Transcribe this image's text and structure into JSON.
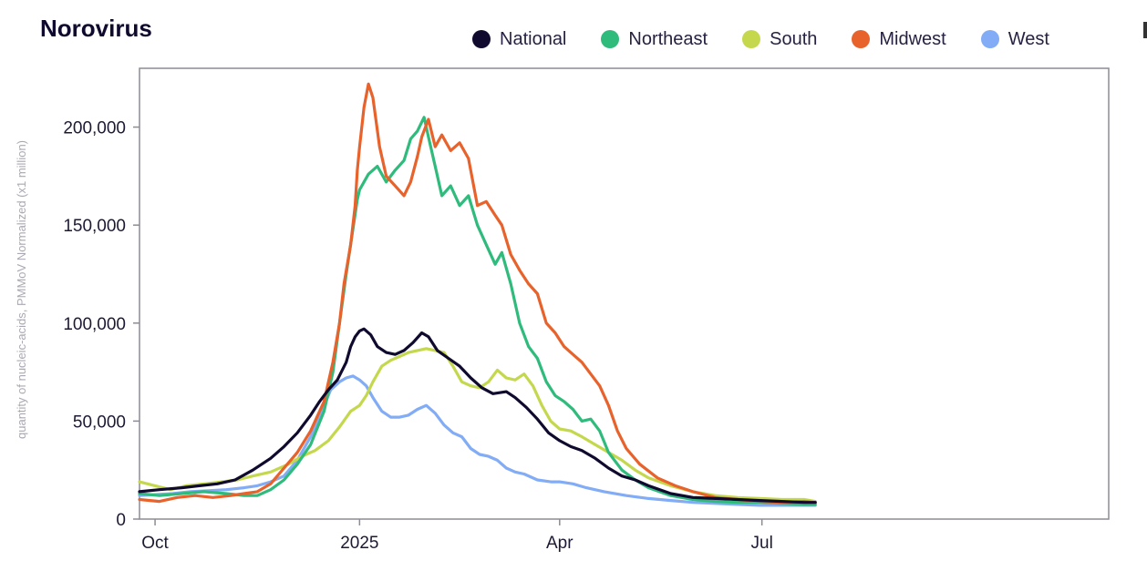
{
  "chart_data": {
    "type": "line",
    "title": "Norovirus",
    "xlabel": "",
    "ylabel": "quantity of nucleic-acids, PMMoV Normalized (x1 million)",
    "ylim": [
      0,
      230000
    ],
    "xlim_days": [
      -99,
      337
    ],
    "x_unit": "days since 2025-01-01",
    "y_ticks": [
      {
        "value": 0,
        "label": "0"
      },
      {
        "value": 50000,
        "label": "50,000"
      },
      {
        "value": 100000,
        "label": "100,000"
      },
      {
        "value": 150000,
        "label": "150,000"
      },
      {
        "value": 200000,
        "label": "200,000"
      }
    ],
    "x_ticks": [
      {
        "day": -92,
        "label": "Oct"
      },
      {
        "day": 0,
        "label": "2025"
      },
      {
        "day": 90,
        "label": "Apr"
      },
      {
        "day": 181,
        "label": "Jul"
      }
    ],
    "legend_position": "top",
    "series": [
      {
        "name": "National",
        "color": "#0f0a2e",
        "points": [
          [
            -99,
            14000
          ],
          [
            -90,
            15000
          ],
          [
            -80,
            16000
          ],
          [
            -72,
            17000
          ],
          [
            -64,
            18000
          ],
          [
            -56,
            20000
          ],
          [
            -48,
            25000
          ],
          [
            -40,
            31000
          ],
          [
            -34,
            37000
          ],
          [
            -28,
            44000
          ],
          [
            -22,
            53000
          ],
          [
            -18,
            60000
          ],
          [
            -14,
            66000
          ],
          [
            -10,
            71000
          ],
          [
            -6,
            80000
          ],
          [
            -4,
            88000
          ],
          [
            -2,
            93000
          ],
          [
            0,
            96000
          ],
          [
            2,
            97000
          ],
          [
            5,
            94000
          ],
          [
            8,
            88000
          ],
          [
            12,
            85000
          ],
          [
            16,
            84000
          ],
          [
            20,
            86000
          ],
          [
            24,
            90000
          ],
          [
            28,
            95000
          ],
          [
            31,
            93000
          ],
          [
            35,
            86000
          ],
          [
            40,
            82000
          ],
          [
            45,
            78000
          ],
          [
            50,
            72000
          ],
          [
            55,
            67000
          ],
          [
            60,
            64000
          ],
          [
            66,
            65000
          ],
          [
            70,
            62000
          ],
          [
            75,
            57000
          ],
          [
            80,
            51000
          ],
          [
            85,
            44000
          ],
          [
            90,
            40000
          ],
          [
            95,
            37000
          ],
          [
            100,
            35000
          ],
          [
            106,
            31000
          ],
          [
            112,
            26000
          ],
          [
            118,
            22000
          ],
          [
            124,
            20000
          ],
          [
            130,
            17000
          ],
          [
            140,
            13000
          ],
          [
            150,
            11000
          ],
          [
            160,
            10500
          ],
          [
            170,
            10000
          ],
          [
            180,
            9500
          ],
          [
            190,
            9000
          ],
          [
            200,
            8500
          ],
          [
            205,
            8500
          ]
        ]
      },
      {
        "name": "Northeast",
        "color": "#2fbb7c",
        "points": [
          [
            -99,
            13000
          ],
          [
            -90,
            12000
          ],
          [
            -80,
            13000
          ],
          [
            -70,
            14000
          ],
          [
            -60,
            13000
          ],
          [
            -52,
            12000
          ],
          [
            -46,
            12000
          ],
          [
            -40,
            15000
          ],
          [
            -34,
            20000
          ],
          [
            -28,
            28000
          ],
          [
            -22,
            38000
          ],
          [
            -16,
            55000
          ],
          [
            -12,
            75000
          ],
          [
            -9,
            100000
          ],
          [
            -6,
            125000
          ],
          [
            -3,
            148000
          ],
          [
            -1,
            163000
          ],
          [
            0,
            168000
          ],
          [
            4,
            176000
          ],
          [
            8,
            180000
          ],
          [
            12,
            172000
          ],
          [
            16,
            178000
          ],
          [
            20,
            183000
          ],
          [
            23,
            194000
          ],
          [
            26,
            198000
          ],
          [
            29,
            205000
          ],
          [
            31,
            195000
          ],
          [
            34,
            180000
          ],
          [
            37,
            165000
          ],
          [
            41,
            170000
          ],
          [
            45,
            160000
          ],
          [
            49,
            165000
          ],
          [
            53,
            150000
          ],
          [
            57,
            140000
          ],
          [
            61,
            130000
          ],
          [
            64,
            136000
          ],
          [
            68,
            120000
          ],
          [
            72,
            100000
          ],
          [
            76,
            88000
          ],
          [
            80,
            82000
          ],
          [
            84,
            70000
          ],
          [
            88,
            63000
          ],
          [
            92,
            60000
          ],
          [
            96,
            56000
          ],
          [
            100,
            50000
          ],
          [
            104,
            51000
          ],
          [
            108,
            45000
          ],
          [
            112,
            34000
          ],
          [
            118,
            25000
          ],
          [
            124,
            20000
          ],
          [
            130,
            16000
          ],
          [
            140,
            12000
          ],
          [
            150,
            10000
          ],
          [
            160,
            9000
          ],
          [
            170,
            8500
          ],
          [
            180,
            8500
          ],
          [
            190,
            8000
          ],
          [
            200,
            7500
          ],
          [
            205,
            7500
          ]
        ]
      },
      {
        "name": "South",
        "color": "#c5d84d",
        "points": [
          [
            -99,
            19000
          ],
          [
            -92,
            17000
          ],
          [
            -85,
            15000
          ],
          [
            -78,
            17000
          ],
          [
            -70,
            18000
          ],
          [
            -62,
            19000
          ],
          [
            -55,
            20000
          ],
          [
            -48,
            22000
          ],
          [
            -40,
            24000
          ],
          [
            -32,
            28000
          ],
          [
            -26,
            32000
          ],
          [
            -20,
            35000
          ],
          [
            -14,
            40000
          ],
          [
            -9,
            47000
          ],
          [
            -4,
            55000
          ],
          [
            0,
            58000
          ],
          [
            3,
            63000
          ],
          [
            6,
            70000
          ],
          [
            10,
            78000
          ],
          [
            14,
            81000
          ],
          [
            18,
            83000
          ],
          [
            22,
            85000
          ],
          [
            26,
            86000
          ],
          [
            30,
            87000
          ],
          [
            34,
            86000
          ],
          [
            38,
            85000
          ],
          [
            42,
            78000
          ],
          [
            46,
            70000
          ],
          [
            50,
            68000
          ],
          [
            54,
            67000
          ],
          [
            58,
            70000
          ],
          [
            62,
            76000
          ],
          [
            66,
            72000
          ],
          [
            70,
            71000
          ],
          [
            74,
            74000
          ],
          [
            78,
            68000
          ],
          [
            82,
            58000
          ],
          [
            86,
            50000
          ],
          [
            90,
            46000
          ],
          [
            95,
            45000
          ],
          [
            100,
            42000
          ],
          [
            106,
            38000
          ],
          [
            112,
            34000
          ],
          [
            118,
            30000
          ],
          [
            124,
            25000
          ],
          [
            130,
            21000
          ],
          [
            140,
            17000
          ],
          [
            150,
            14000
          ],
          [
            160,
            12000
          ],
          [
            170,
            11000
          ],
          [
            180,
            10500
          ],
          [
            190,
            10000
          ],
          [
            200,
            10000
          ],
          [
            205,
            9000
          ]
        ]
      },
      {
        "name": "Midwest",
        "color": "#e8622c",
        "points": [
          [
            -99,
            10000
          ],
          [
            -90,
            9000
          ],
          [
            -82,
            11000
          ],
          [
            -74,
            12000
          ],
          [
            -66,
            11000
          ],
          [
            -58,
            12000
          ],
          [
            -52,
            13000
          ],
          [
            -46,
            14000
          ],
          [
            -40,
            18000
          ],
          [
            -34,
            26000
          ],
          [
            -28,
            34000
          ],
          [
            -22,
            45000
          ],
          [
            -16,
            60000
          ],
          [
            -12,
            80000
          ],
          [
            -9,
            100000
          ],
          [
            -7,
            120000
          ],
          [
            -4,
            140000
          ],
          [
            -2,
            160000
          ],
          [
            -1,
            178000
          ],
          [
            0,
            190000
          ],
          [
            2,
            210000
          ],
          [
            4,
            222000
          ],
          [
            6,
            215000
          ],
          [
            9,
            190000
          ],
          [
            12,
            175000
          ],
          [
            16,
            170000
          ],
          [
            20,
            165000
          ],
          [
            23,
            172000
          ],
          [
            26,
            185000
          ],
          [
            28,
            195000
          ],
          [
            31,
            204000
          ],
          [
            34,
            190000
          ],
          [
            37,
            196000
          ],
          [
            41,
            188000
          ],
          [
            45,
            192000
          ],
          [
            49,
            184000
          ],
          [
            53,
            160000
          ],
          [
            57,
            162000
          ],
          [
            61,
            155000
          ],
          [
            64,
            150000
          ],
          [
            68,
            135000
          ],
          [
            72,
            127000
          ],
          [
            76,
            120000
          ],
          [
            80,
            115000
          ],
          [
            84,
            100000
          ],
          [
            88,
            95000
          ],
          [
            92,
            88000
          ],
          [
            96,
            84000
          ],
          [
            100,
            80000
          ],
          [
            104,
            74000
          ],
          [
            108,
            68000
          ],
          [
            112,
            58000
          ],
          [
            116,
            45000
          ],
          [
            120,
            36000
          ],
          [
            126,
            28000
          ],
          [
            134,
            21000
          ],
          [
            142,
            17000
          ],
          [
            150,
            14000
          ],
          [
            160,
            11000
          ],
          [
            170,
            10000
          ],
          [
            180,
            9000
          ],
          [
            190,
            8500
          ],
          [
            200,
            9000
          ],
          [
            205,
            8500
          ]
        ]
      },
      {
        "name": "West",
        "color": "#82acf5",
        "points": [
          [
            -99,
            12000
          ],
          [
            -92,
            12500
          ],
          [
            -84,
            13000
          ],
          [
            -76,
            14000
          ],
          [
            -68,
            14500
          ],
          [
            -60,
            15000
          ],
          [
            -52,
            16000
          ],
          [
            -46,
            17000
          ],
          [
            -40,
            19000
          ],
          [
            -34,
            22000
          ],
          [
            -28,
            30000
          ],
          [
            -22,
            42000
          ],
          [
            -17,
            55000
          ],
          [
            -13,
            66000
          ],
          [
            -9,
            70000
          ],
          [
            -6,
            72000
          ],
          [
            -3,
            73000
          ],
          [
            0,
            71000
          ],
          [
            3,
            68000
          ],
          [
            6,
            62000
          ],
          [
            10,
            55000
          ],
          [
            14,
            52000
          ],
          [
            18,
            52000
          ],
          [
            22,
            53000
          ],
          [
            26,
            56000
          ],
          [
            30,
            58000
          ],
          [
            34,
            54000
          ],
          [
            38,
            48000
          ],
          [
            42,
            44000
          ],
          [
            46,
            42000
          ],
          [
            50,
            36000
          ],
          [
            54,
            33000
          ],
          [
            58,
            32000
          ],
          [
            62,
            30000
          ],
          [
            66,
            26000
          ],
          [
            70,
            24000
          ],
          [
            74,
            23000
          ],
          [
            80,
            20000
          ],
          [
            86,
            19000
          ],
          [
            90,
            19000
          ],
          [
            96,
            18000
          ],
          [
            102,
            16000
          ],
          [
            110,
            14000
          ],
          [
            120,
            12000
          ],
          [
            130,
            10500
          ],
          [
            140,
            9500
          ],
          [
            150,
            8500
          ],
          [
            160,
            8000
          ],
          [
            170,
            7500
          ],
          [
            180,
            7000
          ],
          [
            190,
            7000
          ],
          [
            200,
            7000
          ],
          [
            205,
            7000
          ]
        ]
      }
    ]
  }
}
